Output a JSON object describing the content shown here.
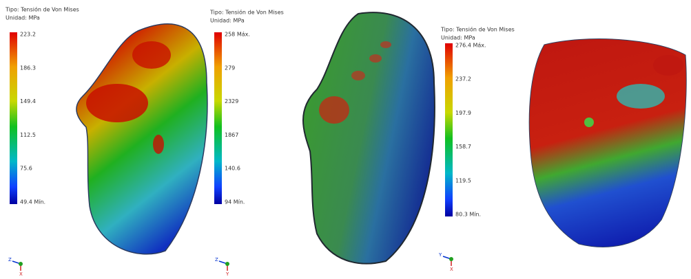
{
  "panels": [
    {
      "legend": {
        "type_label": "Tipo: Tensión de Von Mises",
        "unit_label": "Unidad: MPa",
        "labels": [
          "223.2",
          "186.3",
          "149.4",
          "112.5",
          "75.6",
          "49.4 Mín."
        ]
      },
      "triad": {
        "labels": [
          "Z",
          "X"
        ]
      }
    },
    {
      "legend": {
        "type_label": "Tipo: Tensión de Von Mises",
        "unit_label": "Unidad: MPa",
        "labels": [
          "258 Máx.",
          "279",
          "2329",
          "1867",
          "140.6",
          "94  Mín."
        ]
      },
      "triad": {
        "labels": [
          "Z",
          "Y"
        ]
      }
    },
    {
      "legend": {
        "type_label": "Tipo: Tensión de Von Mises",
        "unit_label": "Unidad: MPa",
        "labels": [
          "276.4 Máx.",
          "237.2",
          "197.9",
          "158.7",
          "119.5",
          "80.3 Mín."
        ]
      },
      "triad": {
        "labels": [
          "Y",
          "X"
        ]
      }
    }
  ]
}
